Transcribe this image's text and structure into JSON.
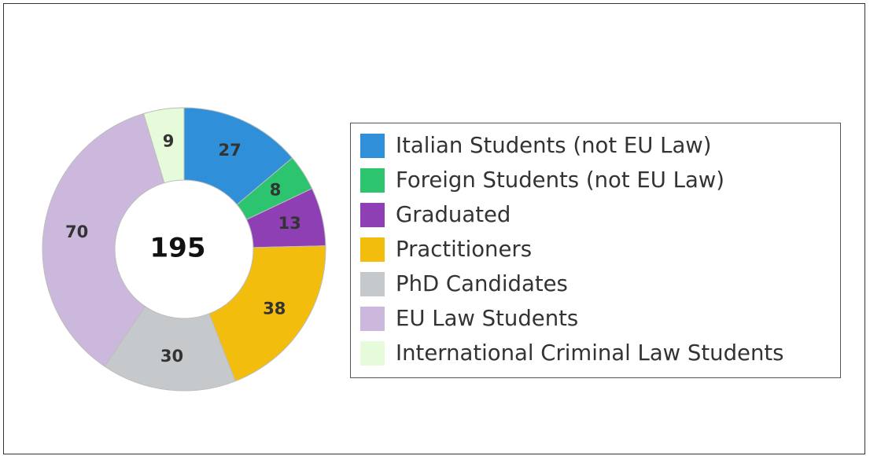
{
  "chart_data": {
    "type": "pie",
    "variant": "donut",
    "center_label": "195",
    "categories": [
      "Italian Students (not EU Law)",
      "Foreign Students (not EU Law)",
      "Graduated",
      "Practitioners",
      "PhD Candidates",
      "EU Law Students",
      "International Criminal Law Students"
    ],
    "values": [
      27,
      8,
      13,
      38,
      30,
      70,
      9
    ],
    "colors": [
      "#2f8fd8",
      "#2cc46e",
      "#8e3fb4",
      "#f2bd0d",
      "#c6c9cc",
      "#ccb8dc",
      "#e6fbd9"
    ],
    "legend_position": "right",
    "title": ""
  }
}
